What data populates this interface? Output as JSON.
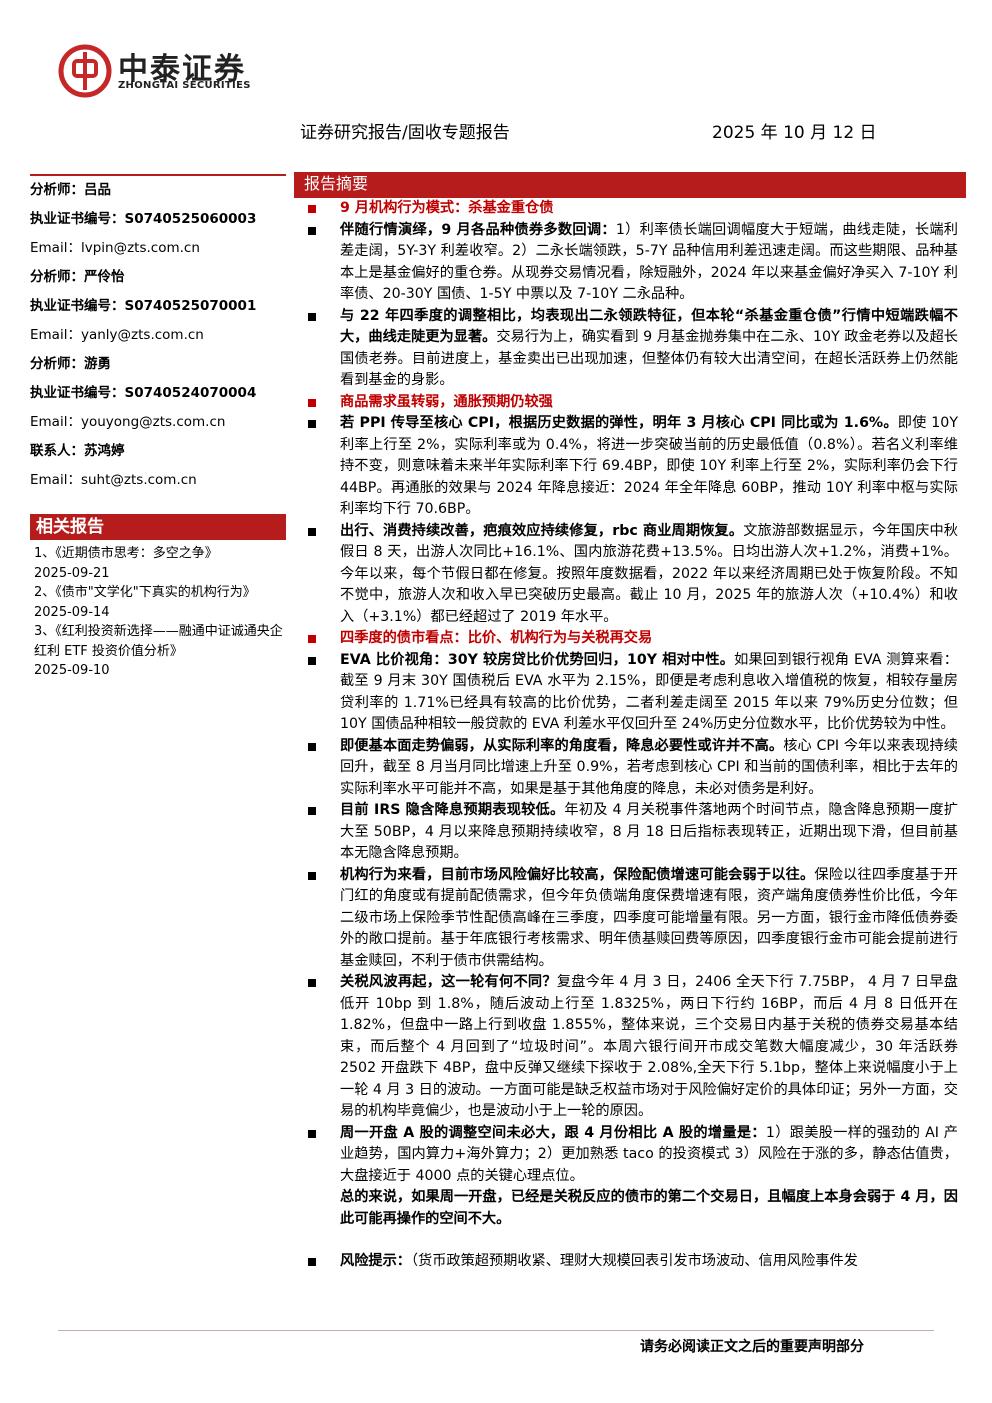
{
  "logo": {
    "name": "中泰证券",
    "name_en": "ZHONGTAI SECURITIES"
  },
  "header": {
    "report_type": "证券研究报告/固收专题报告",
    "date": "2025 年 10 月 12 日"
  },
  "sidebar": {
    "contacts": [
      {
        "label": "分析师：",
        "value": "吕品",
        "bold": true
      },
      {
        "label": "执业证书编号：",
        "value": "S0740525060003",
        "bold": true
      },
      {
        "label": "Email：",
        "value": "lvpin@zts.com.cn",
        "bold": false
      },
      {
        "label": "分析师：",
        "value": "严伶怡",
        "bold": true
      },
      {
        "label": "执业证书编号：",
        "value": "S0740525070001",
        "bold": true
      },
      {
        "label": "Email：",
        "value": "yanly@zts.com.cn",
        "bold": false
      },
      {
        "label": "分析师：",
        "value": "游勇",
        "bold": true
      },
      {
        "label": "执业证书编号：",
        "value": "S0740524070004",
        "bold": true
      },
      {
        "label": "Email：",
        "value": "youyong@zts.com.cn",
        "bold": false
      },
      {
        "label": "联系人：",
        "value": "苏鸿婷",
        "bold": true
      },
      {
        "label": "Email：",
        "value": "suht@zts.com.cn",
        "bold": false
      }
    ],
    "related_title": "相关报告",
    "related": [
      {
        "title": "1、《近期债市思考：多空之争》",
        "date": "2025-09-21"
      },
      {
        "title": "2、《债市\"文学化\"下真实的机构行为》",
        "date": "2025-09-14"
      },
      {
        "title": "3、《红利投资新选择——融通中证诚通央企红利 ETF 投资价值分析》",
        "date": "2025-09-10"
      }
    ]
  },
  "summary": {
    "title": "报告摘要",
    "items": [
      {
        "kind": "heading",
        "text": "9 月机构行为模式：杀基金重仓债"
      },
      {
        "kind": "bullet",
        "lead": "伴随行情演绎，9 月各品种债券多数回调：",
        "text": "1）利率债长端回调幅度大于短端，曲线走陡，长端利差走阔，5Y-3Y 利差收窄。2）二永长端领跌，5-7Y 品种信用利差迅速走阔。而这些期限、品种基本上是基金偏好的重仓券。从现券交易情况看，除短融外，2024 年以来基金偏好净买入 7-10Y 利率债、20-30Y 国债、1-5Y 中票以及 7-10Y 二永品种。"
      },
      {
        "kind": "bullet",
        "lead": "与 22 年四季度的调整相比，均表现出二永领跌特征，但本轮“杀基金重仓债”行情中短端跌幅不大，曲线走陡更为显著。",
        "text": "交易行为上，确实看到 9 月基金抛券集中在二永、10Y 政金老券以及超长国债老券。目前进度上，基金卖出已出现加速，但整体仍有较大出清空间，在超长活跃券上仍然能看到基金的身影。"
      },
      {
        "kind": "heading",
        "text": "商品需求虽转弱，通胀预期仍较强"
      },
      {
        "kind": "bullet",
        "lead": "若 PPI 传导至核心 CPI，根据历史数据的弹性，明年 3 月核心 CPI 同比或为 1.6%。",
        "text": "即使 10Y 利率上行至 2%，实际利率或为 0.4%，将进一步突破当前的历史最低值（0.8%）。若名义利率维持不变，则意味着未来半年实际利率下行 69.4BP，即使 10Y 利率上行至 2%，实际利率仍会下行 44BP。再通胀的效果与 2024 年降息接近：2024 年全年降息 60BP，推动 10Y 利率中枢与实际利率均下行 70.6BP。"
      },
      {
        "kind": "bullet",
        "lead": "出行、消费持续改善，疤痕效应持续修复，rbc 商业周期恢复。",
        "text": "文旅游部数据显示，今年国庆中秋假日 8 天，出游人次同比+16.1%、国内旅游花费+13.5%。日均出游人次+1.2%，消费+1%。今年以来，每个节假日都在修复。按照年度数据看，2022 年以来经济周期已处于恢复阶段。不知不觉中，旅游人次和收入早已突破历史最高。截止 10 月，2025 年的旅游人次（+10.4%）和收入（+3.1%）都已经超过了 2019 年水平。"
      },
      {
        "kind": "heading",
        "text": "四季度的债市看点：比价、机构行为与关税再交易"
      },
      {
        "kind": "bullet",
        "lead": "EVA 比价视角：30Y 较房贷比价优势回归，10Y 相对中性。",
        "text": "如果回到银行视角 EVA 测算来看：截至 9 月末 30Y 国债税后 EVA 水平为 2.15%，即便是考虑利息收入增值税的恢复，相较存量房贷利率的 1.71%已经具有较高的比价优势，二者利差走阔至 2015 年以来 79%历史分位数；但 10Y 国债品种相较一般贷款的 EVA 利差水平仅回升至 24%历史分位数水平，比价优势较为中性。"
      },
      {
        "kind": "bullet",
        "lead": "即便基本面走势偏弱，从实际利率的角度看，降息必要性或许并不高。",
        "text": "核心 CPI 今年以来表现持续回升，截至 8 月当月同比增速上升至 0.9%，若考虑到核心 CPI 和当前的国债利率，相比于去年的实际利率水平可能并不高，如果是基于其他角度的降息，未必对债务是利好。"
      },
      {
        "kind": "bullet",
        "lead": "目前 IRS 隐含降息预期表现较低。",
        "text": "年初及 4 月关税事件落地两个时间节点，隐含降息预期一度扩大至 50BP，4 月以来降息预期持续收窄，8 月 18 日后指标表现转正，近期出现下滑，但目前基本无隐含降息预期。"
      },
      {
        "kind": "bullet",
        "lead": "机构行为来看，目前市场风险偏好比较高，保险配债增速可能会弱于以往。",
        "text": "保险以往四季度基于开门红的角度或有提前配债需求，但今年负债端角度保费增速有限，资产端角度债券性价比低，今年二级市场上保险季节性配债高峰在三季度，四季度可能增量有限。另一方面，银行金市降低债券委外的敞口提前。基于年底银行考核需求、明年债基赎回费等原因，四季度银行金市可能会提前进行基金赎回，不利于债市供需结构。"
      },
      {
        "kind": "bullet",
        "lead": "关税风波再起，这一轮有何不同？",
        "text": "复盘今年 4 月 3 日，2406 全天下行 7.75BP， 4 月 7 日早盘低开 10bp 到 1.8%，随后波动上行至 1.8325%，两日下行约 16BP，而后 4 月 8 日低开在 1.82%，但盘中一路上行到收盘 1.855%，整体来说，三个交易日内基于关税的债券交易基本结束，而后整个 4 月回到了“垃圾时间”。本周六银行间开市成交笔数大幅度减少，30 年活跃券 2502 开盘跌下 4BP，盘中反弹又继续下探收于 2.08%,全天下行 5.1bp，整体上来说幅度小于上一轮 4 月 3 日的波动。一方面可能是缺乏权益市场对于风险偏好定价的具体印证；另外一方面，交易的机构毕竟偏少，也是波动小于上一轮的原因。"
      },
      {
        "kind": "bullet",
        "lead": "周一开盘 A 股的调整空间未必大，跟 4 月份相比 A 股的增量是：",
        "text": "1）跟美股一样的强劲的 AI 产业趋势，国内算力+海外算力；2）更加熟悉 taco 的投资模式 3）风险在于涨的多，静态估值贵，大盘接近于 4000 点的关键心理点位。"
      },
      {
        "kind": "conclusion",
        "lead": "总的来说，如果周一开盘，已经是关税反应的债市的第二个交易日，且幅度上本身会弱于 4 月，因此可能再操作的空间不大。"
      },
      {
        "kind": "risk",
        "lead": "风险提示：",
        "text": "（货币政策超预期收紧、理财大规模回表引发市场波动、信用风险事件发"
      }
    ]
  },
  "footer": {
    "notice": "请务必阅读正文之后的重要声明部分"
  }
}
